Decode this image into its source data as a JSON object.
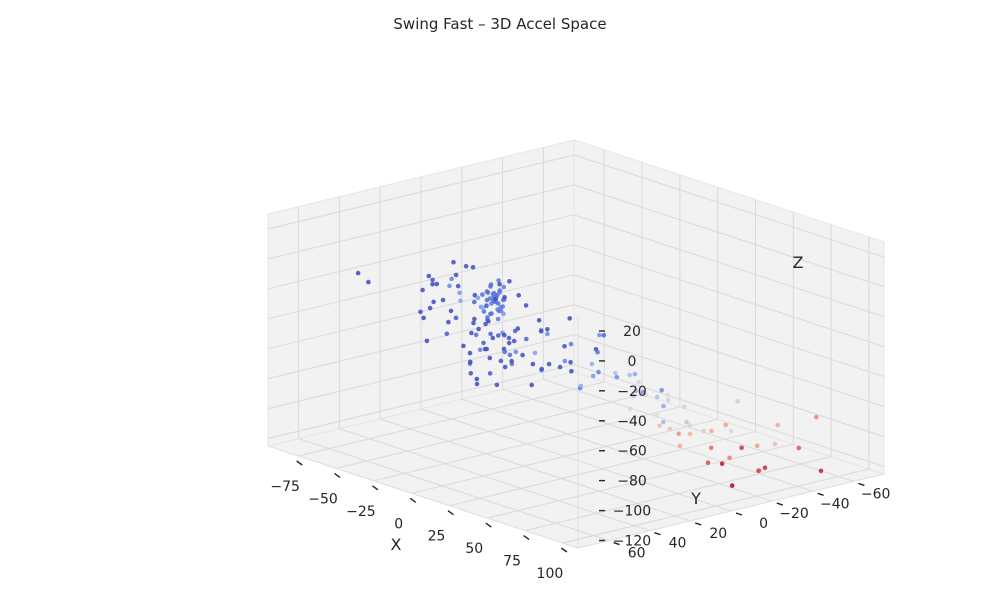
{
  "chart_data": {
    "type": "scatter",
    "projection": "3d",
    "title": "Swing Fast – 3D Accel Space",
    "xlabel": "X",
    "ylabel": "Y",
    "zlabel": "Z",
    "xlim": [
      -95,
      110
    ],
    "ylim": [
      -75,
      75
    ],
    "zlim": [
      -125,
      30
    ],
    "xticks": [
      -75,
      -50,
      -25,
      0,
      25,
      50,
      75,
      100
    ],
    "yticks": [
      -60,
      -40,
      -20,
      0,
      20,
      40,
      60
    ],
    "zticks": [
      20,
      0,
      -20,
      -40,
      -60,
      -80,
      -100,
      -120
    ],
    "xtick_labels": [
      "−75",
      "−50",
      "−25",
      "0",
      "25",
      "50",
      "75",
      "100"
    ],
    "ytick_labels": [
      "−60",
      "−40",
      "−20",
      "0",
      "20",
      "40",
      "60"
    ],
    "ztick_labels": [
      "20",
      "0",
      "−20",
      "−40",
      "−60",
      "−80",
      "−100",
      "−120"
    ],
    "grid": true,
    "colormap": "coolwarm",
    "color_encodes": "x",
    "points": [
      [
        -17,
        25,
        -13
      ],
      [
        -14,
        24,
        -16
      ],
      [
        -16,
        22,
        -20
      ],
      [
        -12,
        26,
        -14
      ],
      [
        -18,
        25,
        -22
      ],
      [
        -13,
        20,
        -18
      ],
      [
        -15,
        27,
        -11
      ],
      [
        -11,
        23,
        -24
      ],
      [
        -19,
        21,
        -16
      ],
      [
        -14,
        28,
        -20
      ],
      [
        -16,
        24,
        -27
      ],
      [
        -12,
        21,
        -9
      ],
      [
        -17,
        27,
        -25
      ],
      [
        -13,
        25,
        -12
      ],
      [
        -15,
        22,
        -15
      ],
      [
        -10,
        24,
        -21
      ],
      [
        -18,
        23,
        -10
      ],
      [
        -14,
        26,
        -26
      ],
      [
        -16,
        20,
        -13
      ],
      [
        -12,
        27,
        -18
      ],
      [
        -13,
        23,
        -30
      ],
      [
        -15,
        25,
        -7
      ],
      [
        -11,
        22,
        -17
      ],
      [
        -17,
        20,
        -22
      ],
      [
        -14,
        22,
        -5
      ],
      [
        -16,
        26,
        -29
      ],
      [
        -12,
        24,
        -23
      ],
      [
        -19,
        24,
        -19
      ],
      [
        -13,
        27,
        -15
      ],
      [
        -15,
        21,
        -26
      ],
      [
        -18,
        27,
        -14
      ],
      [
        -10,
        26,
        -13
      ],
      [
        -16,
        23,
        -19
      ],
      [
        -14,
        20,
        -23
      ],
      [
        -12,
        23,
        -12
      ],
      [
        -28,
        18,
        -40
      ],
      [
        -32,
        22,
        -46
      ],
      [
        -25,
        14,
        -48
      ],
      [
        -34,
        10,
        -54
      ],
      [
        -22,
        20,
        -44
      ],
      [
        -30,
        16,
        -58
      ],
      [
        -26,
        8,
        -52
      ],
      [
        -36,
        18,
        -42
      ],
      [
        -20,
        12,
        -60
      ],
      [
        -28,
        4,
        -56
      ],
      [
        -24,
        22,
        -50
      ],
      [
        -38,
        14,
        -48
      ],
      [
        -32,
        6,
        -62
      ],
      [
        -18,
        16,
        -56
      ],
      [
        -30,
        24,
        -64
      ],
      [
        -26,
        12,
        -66
      ],
      [
        -34,
        2,
        -60
      ],
      [
        -22,
        8,
        -46
      ],
      [
        -40,
        20,
        -58
      ],
      [
        -20,
        4,
        -52
      ],
      [
        -36,
        10,
        -68
      ],
      [
        -27,
        26,
        -70
      ],
      [
        -16,
        14,
        -64
      ],
      [
        -31,
        0,
        -50
      ],
      [
        -25,
        18,
        -72
      ],
      [
        -36,
        36,
        -10
      ],
      [
        -30,
        42,
        -18
      ],
      [
        -40,
        30,
        -24
      ],
      [
        -26,
        34,
        -30
      ],
      [
        -34,
        28,
        -6
      ],
      [
        -42,
        38,
        -34
      ],
      [
        -28,
        44,
        -2
      ],
      [
        -38,
        24,
        -16
      ],
      [
        -24,
        40,
        -38
      ],
      [
        -32,
        32,
        -28
      ],
      [
        -44,
        34,
        -8
      ],
      [
        -22,
        28,
        -20
      ],
      [
        -36,
        44,
        -26
      ],
      [
        -30,
        22,
        -36
      ],
      [
        -40,
        40,
        -14
      ],
      [
        -18,
        30,
        -40
      ],
      [
        -10,
        34,
        -46
      ],
      [
        -8,
        18,
        -52
      ],
      [
        -6,
        26,
        -36
      ],
      [
        -14,
        36,
        -56
      ],
      [
        -2,
        50,
        0
      ],
      [
        2,
        44,
        -4
      ],
      [
        -6,
        52,
        4
      ],
      [
        8,
        46,
        -8
      ],
      [
        -10,
        48,
        6
      ],
      [
        4,
        54,
        -2
      ],
      [
        -4,
        38,
        -14
      ],
      [
        0,
        30,
        -20
      ],
      [
        -8,
        32,
        -26
      ],
      [
        -2,
        10,
        -38
      ],
      [
        -6,
        4,
        -44
      ],
      [
        2,
        16,
        -50
      ],
      [
        -60,
        10,
        -12
      ],
      [
        -66,
        -4,
        -22
      ],
      [
        -54,
        4,
        -34
      ],
      [
        -62,
        20,
        -40
      ],
      [
        -50,
        -10,
        -28
      ],
      [
        -58,
        14,
        -50
      ],
      [
        -52,
        -16,
        -40
      ],
      [
        -56,
        26,
        -58
      ],
      [
        -48,
        -6,
        -62
      ],
      [
        -64,
        -18,
        -46
      ],
      [
        -44,
        -12,
        -76
      ],
      [
        -52,
        -26,
        -60
      ],
      [
        -40,
        -22,
        -84
      ],
      [
        -56,
        -30,
        -70
      ],
      [
        -48,
        -20,
        -86
      ],
      [
        -36,
        -30,
        -90
      ],
      [
        -58,
        -4,
        -74
      ],
      [
        -42,
        -2,
        -80
      ],
      [
        -50,
        6,
        -88
      ],
      [
        -38,
        -12,
        -94
      ],
      [
        -30,
        -20,
        -82
      ],
      [
        -46,
        -34,
        -78
      ],
      [
        -26,
        -8,
        -78
      ],
      [
        -54,
        -14,
        -84
      ],
      [
        -34,
        8,
        -86
      ],
      [
        -12,
        -12,
        -58
      ],
      [
        -4,
        -20,
        -52
      ],
      [
        -16,
        -28,
        -70
      ],
      [
        -8,
        -6,
        -66
      ],
      [
        -20,
        -34,
        -62
      ],
      [
        0,
        -14,
        -76
      ],
      [
        -10,
        -24,
        -80
      ],
      [
        -18,
        -2,
        -74
      ],
      [
        -6,
        -30,
        -84
      ],
      [
        -14,
        -18,
        -90
      ],
      [
        10,
        -6,
        -62
      ],
      [
        16,
        -20,
        -72
      ],
      [
        6,
        -30,
        -78
      ],
      [
        20,
        -10,
        -66
      ],
      [
        12,
        -26,
        -86
      ],
      [
        24,
        -16,
        -82
      ],
      [
        8,
        -2,
        -76
      ],
      [
        18,
        -32,
        -90
      ],
      [
        30,
        -14,
        -70
      ],
      [
        36,
        -24,
        -80
      ],
      [
        28,
        -30,
        -88
      ],
      [
        40,
        -10,
        -74
      ],
      [
        34,
        -20,
        -92
      ],
      [
        44,
        -26,
        -86
      ],
      [
        38,
        -4,
        -82
      ],
      [
        48,
        -16,
        -96
      ],
      [
        42,
        -30,
        -100
      ],
      [
        52,
        -8,
        -90
      ],
      [
        56,
        -20,
        -98
      ],
      [
        46,
        -34,
        -104
      ],
      [
        60,
        -12,
        -102
      ],
      [
        62,
        -26,
        -96
      ],
      [
        -76,
        -8,
        -26
      ],
      [
        -70,
        -20,
        -40
      ],
      [
        -82,
        4,
        -36
      ],
      [
        -66,
        -30,
        -56
      ],
      [
        -60,
        -36,
        -72
      ],
      [
        -72,
        -16,
        -64
      ],
      [
        -68,
        -4,
        -80
      ],
      [
        -56,
        -44,
        -66
      ],
      [
        -78,
        -24,
        -54
      ],
      [
        -50,
        -40,
        -92
      ],
      [
        -58,
        0,
        -96
      ],
      [
        -44,
        -48,
        -84
      ],
      [
        -2,
        -40,
        -96
      ],
      [
        6,
        -44,
        -104
      ],
      [
        14,
        -38,
        -110
      ],
      [
        -6,
        -52,
        -100
      ],
      [
        24,
        -42,
        -108
      ],
      [
        70,
        -4,
        -88
      ],
      [
        78,
        -14,
        -98
      ],
      [
        66,
        -30,
        -92
      ],
      [
        84,
        -8,
        -104
      ],
      [
        90,
        -20,
        -96
      ],
      [
        74,
        -26,
        -110
      ],
      [
        96,
        -6,
        -100
      ],
      [
        68,
        -44,
        -110
      ],
      [
        80,
        -36,
        -120
      ],
      [
        92,
        -30,
        -112
      ],
      [
        104,
        -18,
        -106
      ],
      [
        100,
        -8,
        -114
      ],
      [
        -92,
        28,
        -30
      ],
      [
        -88,
        36,
        -20
      ],
      [
        40,
        -52,
        -112
      ],
      [
        60,
        -60,
        -104
      ],
      [
        82,
        -54,
        -110
      ],
      [
        28,
        -64,
        -100
      ],
      [
        72,
        -70,
        -98
      ],
      [
        50,
        -66,
        -122
      ],
      [
        94,
        -56,
        -122
      ]
    ]
  }
}
